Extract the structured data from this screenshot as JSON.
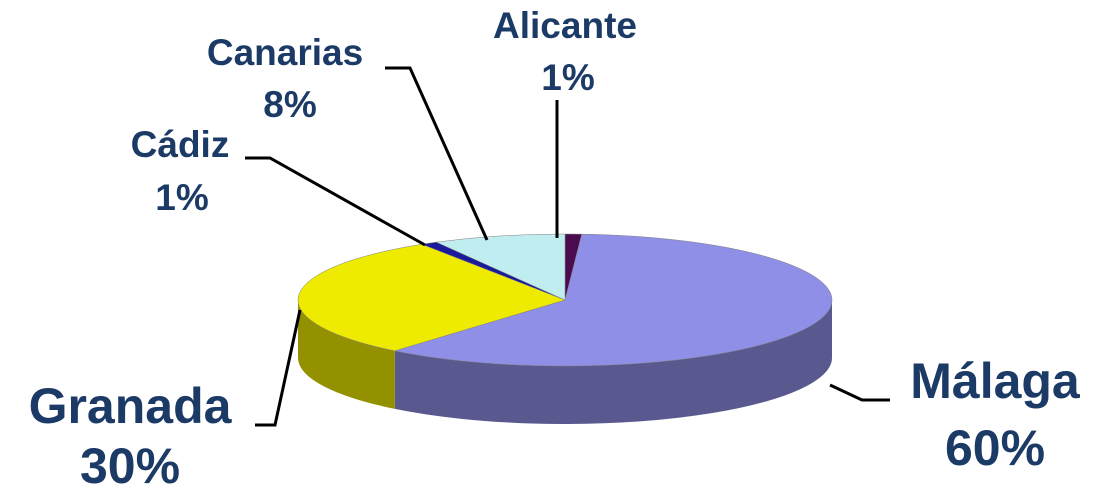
{
  "chart_data": {
    "type": "pie",
    "categories": [
      "Alicante",
      "Málaga",
      "Granada",
      "Cádiz",
      "Canarias"
    ],
    "values": [
      1,
      60,
      30,
      1,
      8
    ],
    "value_labels": [
      "1%",
      "60%",
      "30%",
      "1%",
      "8%"
    ],
    "colors": [
      "#4b0b4f",
      "#8f8fe8",
      "#eeea00",
      "#1a1a9a",
      "#c0eef0"
    ]
  }
}
